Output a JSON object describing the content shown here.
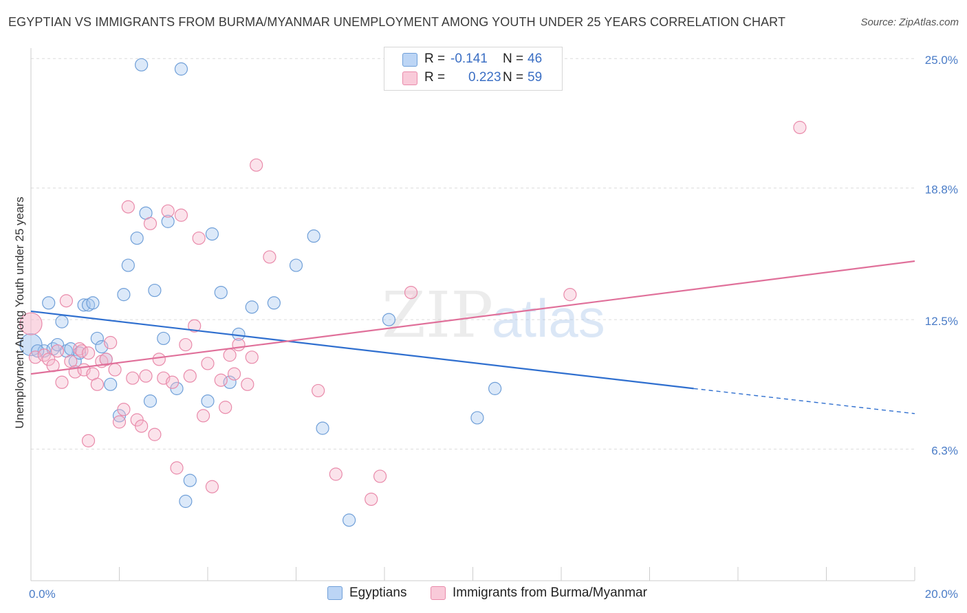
{
  "title": "EGYPTIAN VS IMMIGRANTS FROM BURMA/MYANMAR UNEMPLOYMENT AMONG YOUTH UNDER 25 YEARS CORRELATION CHART",
  "source": "Source: ZipAtlas.com",
  "watermark": {
    "zip": "ZIP",
    "atlas": "atlas"
  },
  "legend": {
    "r_label": "R =",
    "n_label": "N =",
    "egyptians": {
      "r": "-0.141",
      "n": "46"
    },
    "burma": {
      "r": "0.223",
      "n": "59"
    }
  },
  "bottom_legend": {
    "egyptians": "Egyptians",
    "burma": "Immigrants from Burma/Myanmar"
  },
  "colors": {
    "blue_fill": "#a8c8f0",
    "blue_stroke": "#6f9fd8",
    "blue_line": "#2f6fcf",
    "pink_fill": "#f5b8cc",
    "pink_stroke": "#e98aaa",
    "pink_line": "#e0709a",
    "tick_text": "#4a7cc7",
    "grid": "#dcdcdc"
  },
  "chart_data": {
    "type": "scatter",
    "title": "EGYPTIAN VS IMMIGRANTS FROM BURMA/MYANMAR UNEMPLOYMENT AMONG YOUTH UNDER 25 YEARS CORRELATION CHART",
    "xlabel": "",
    "ylabel": "Unemployment Among Youth under 25 years",
    "xlim": [
      0,
      20
    ],
    "ylim": [
      0,
      25.5
    ],
    "x_tick_labels": [
      "0.0%",
      "20.0%"
    ],
    "y_ticks": [
      {
        "value": 6.3,
        "label": "6.3%"
      },
      {
        "value": 12.5,
        "label": "12.5%"
      },
      {
        "value": 18.8,
        "label": "18.8%"
      },
      {
        "value": 25.0,
        "label": "25.0%"
      }
    ],
    "grid": true,
    "series": [
      {
        "name": "Egyptians",
        "color": "blue",
        "points": [
          [
            2.5,
            24.7
          ],
          [
            3.4,
            24.5
          ],
          [
            0.0,
            11.3
          ],
          [
            0.4,
            13.3
          ],
          [
            0.3,
            11.0
          ],
          [
            0.5,
            11.1
          ],
          [
            0.7,
            12.4
          ],
          [
            0.6,
            11.3
          ],
          [
            0.8,
            11.0
          ],
          [
            1.2,
            13.2
          ],
          [
            1.3,
            13.2
          ],
          [
            1.4,
            13.3
          ],
          [
            1.5,
            11.6
          ],
          [
            1.6,
            11.2
          ],
          [
            1.7,
            10.6
          ],
          [
            1.8,
            9.4
          ],
          [
            2.1,
            13.7
          ],
          [
            2.2,
            15.1
          ],
          [
            2.4,
            16.4
          ],
          [
            2.6,
            17.6
          ],
          [
            2.8,
            13.9
          ],
          [
            3.1,
            17.2
          ],
          [
            3.0,
            11.6
          ],
          [
            2.7,
            8.6
          ],
          [
            3.3,
            9.2
          ],
          [
            3.5,
            3.8
          ],
          [
            3.6,
            4.8
          ],
          [
            4.0,
            8.6
          ],
          [
            4.1,
            16.6
          ],
          [
            4.3,
            13.8
          ],
          [
            4.5,
            9.5
          ],
          [
            4.7,
            11.8
          ],
          [
            5.0,
            13.1
          ],
          [
            5.5,
            13.3
          ],
          [
            6.0,
            15.1
          ],
          [
            6.4,
            16.5
          ],
          [
            6.6,
            7.3
          ],
          [
            7.2,
            2.9
          ],
          [
            8.1,
            12.5
          ],
          [
            10.1,
            7.8
          ],
          [
            10.5,
            9.2
          ],
          [
            2.0,
            7.9
          ],
          [
            1.0,
            10.5
          ],
          [
            0.9,
            11.1
          ],
          [
            0.15,
            11.0
          ],
          [
            1.1,
            10.9
          ]
        ]
      },
      {
        "name": "Immigrants from Burma/Myanmar",
        "color": "pink",
        "points": [
          [
            0.0,
            12.3
          ],
          [
            0.1,
            10.7
          ],
          [
            0.3,
            10.8
          ],
          [
            0.4,
            10.6
          ],
          [
            0.5,
            10.3
          ],
          [
            0.6,
            11.0
          ],
          [
            0.7,
            9.5
          ],
          [
            0.8,
            13.4
          ],
          [
            0.9,
            10.5
          ],
          [
            1.0,
            10.0
          ],
          [
            1.1,
            11.1
          ],
          [
            1.15,
            11.0
          ],
          [
            1.2,
            10.1
          ],
          [
            1.3,
            10.9
          ],
          [
            1.4,
            9.9
          ],
          [
            1.5,
            9.4
          ],
          [
            1.6,
            10.5
          ],
          [
            1.7,
            10.6
          ],
          [
            1.8,
            11.4
          ],
          [
            1.9,
            10.1
          ],
          [
            2.0,
            7.6
          ],
          [
            2.1,
            8.2
          ],
          [
            2.2,
            17.9
          ],
          [
            2.3,
            9.7
          ],
          [
            2.4,
            7.7
          ],
          [
            2.5,
            7.4
          ],
          [
            2.6,
            9.8
          ],
          [
            2.7,
            17.1
          ],
          [
            2.8,
            7.0
          ],
          [
            2.9,
            10.6
          ],
          [
            3.0,
            9.7
          ],
          [
            3.1,
            17.7
          ],
          [
            3.2,
            9.5
          ],
          [
            3.3,
            5.4
          ],
          [
            3.4,
            17.5
          ],
          [
            3.5,
            11.3
          ],
          [
            3.6,
            9.8
          ],
          [
            3.7,
            12.2
          ],
          [
            3.8,
            16.4
          ],
          [
            3.9,
            7.9
          ],
          [
            4.0,
            10.4
          ],
          [
            4.1,
            4.5
          ],
          [
            4.3,
            9.6
          ],
          [
            4.4,
            8.3
          ],
          [
            4.5,
            10.8
          ],
          [
            4.6,
            9.9
          ],
          [
            4.7,
            11.3
          ],
          [
            4.9,
            9.4
          ],
          [
            5.0,
            10.7
          ],
          [
            5.1,
            19.9
          ],
          [
            5.4,
            15.5
          ],
          [
            6.5,
            9.1
          ],
          [
            6.9,
            5.1
          ],
          [
            7.7,
            3.9
          ],
          [
            7.9,
            5.0
          ],
          [
            8.6,
            13.8
          ],
          [
            12.2,
            13.7
          ],
          [
            17.4,
            21.7
          ],
          [
            1.3,
            6.7
          ]
        ]
      }
    ],
    "trendlines": [
      {
        "series": "Egyptians",
        "solid": {
          "x": [
            0,
            15.0
          ],
          "y": [
            12.9,
            9.2
          ]
        },
        "dashed": {
          "x": [
            15.0,
            20.0
          ],
          "y": [
            9.2,
            8.0
          ]
        }
      },
      {
        "series": "Immigrants from Burma/Myanmar",
        "solid": {
          "x": [
            0,
            20.0
          ],
          "y": [
            9.9,
            15.3
          ]
        }
      }
    ]
  }
}
